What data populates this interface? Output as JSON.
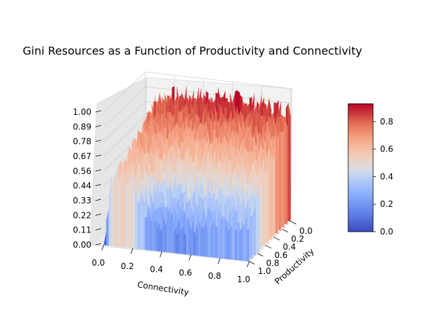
{
  "chart_data": {
    "type": "surface3d",
    "title": "Gini Resources as a Function of Productivity and Connectivity",
    "xlabel": "Connectivity",
    "ylabel": "Productivity",
    "zlabel": "",
    "x_ticks": [
      "0.0",
      "0.2",
      "0.4",
      "0.6",
      "0.8",
      "1.0"
    ],
    "y_ticks": [
      "0.0",
      "0.2",
      "0.4",
      "0.6",
      "0.8",
      "1.0"
    ],
    "z_ticks": [
      "0.00",
      "0.11",
      "0.22",
      "0.33",
      "0.44",
      "0.56",
      "0.67",
      "0.78",
      "0.89",
      "1.00"
    ],
    "xlim": [
      0,
      1
    ],
    "ylim": [
      0,
      1
    ],
    "zlim": [
      0,
      1
    ],
    "colormap": "coolwarm",
    "colorbar": {
      "ticks": [
        "0.0",
        "0.2",
        "0.4",
        "0.6",
        "0.8"
      ],
      "range": [
        0,
        0.93
      ]
    },
    "surface_summary": {
      "x": [
        0.0,
        0.05,
        0.1,
        0.2,
        0.3,
        0.4,
        0.5,
        0.6,
        0.7,
        0.8,
        0.9,
        1.0
      ],
      "high_productivity_z": [
        0.02,
        0.75,
        0.82,
        0.85,
        0.86,
        0.87,
        0.88,
        0.88,
        0.87,
        0.86,
        0.85,
        0.84
      ],
      "low_productivity_z": [
        0.02,
        0.45,
        0.55,
        0.5,
        0.25,
        0.18,
        0.2,
        0.22,
        0.24,
        0.26,
        0.28,
        0.3
      ]
    },
    "grid": true
  }
}
